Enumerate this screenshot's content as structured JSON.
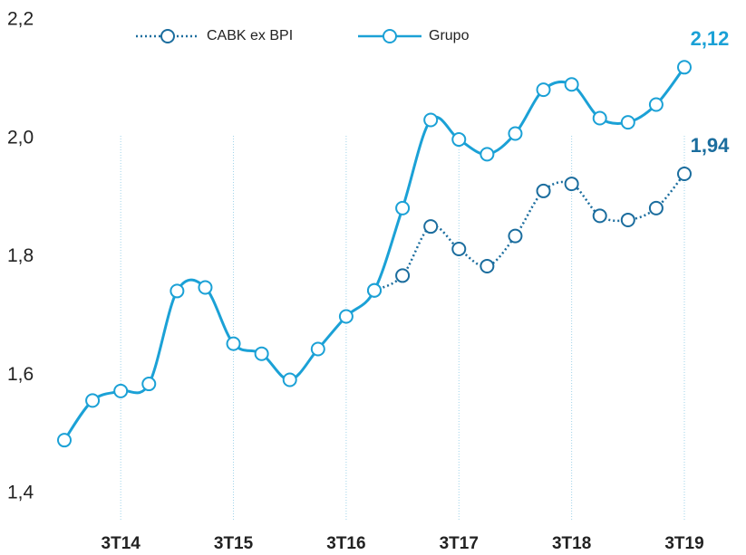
{
  "chart_data": {
    "type": "line",
    "categories": [
      null,
      null,
      "3T14",
      null,
      null,
      null,
      "3T15",
      null,
      null,
      null,
      "3T16",
      null,
      null,
      null,
      "3T17",
      null,
      null,
      null,
      "3T18",
      null,
      null,
      null,
      "3T19"
    ],
    "series": [
      {
        "name": "CABK ex BPI",
        "color": "#1b6d9e",
        "dashed": true,
        "values": [
          null,
          null,
          null,
          null,
          null,
          null,
          null,
          null,
          null,
          null,
          null,
          1.743,
          1.768,
          1.851,
          1.813,
          1.784,
          1.835,
          1.911,
          1.923,
          1.869,
          1.862,
          1.882,
          1.94
        ],
        "value_labels": [
          null,
          null,
          null,
          null,
          null,
          null,
          null,
          null,
          null,
          null,
          null,
          null,
          null,
          null,
          null,
          null,
          null,
          null,
          null,
          null,
          null,
          null,
          "1,94"
        ]
      },
      {
        "name": "Grupo",
        "color": "#1ba1d6",
        "dashed": false,
        "values": [
          1.49,
          1.557,
          1.573,
          1.585,
          1.742,
          1.748,
          1.653,
          1.636,
          1.592,
          1.644,
          1.699,
          1.743,
          1.882,
          2.031,
          1.998,
          1.973,
          2.008,
          2.082,
          2.091,
          2.034,
          2.027,
          2.057,
          2.12
        ],
        "value_labels": [
          null,
          null,
          null,
          null,
          null,
          null,
          null,
          null,
          null,
          null,
          null,
          null,
          null,
          null,
          null,
          null,
          null,
          null,
          null,
          null,
          null,
          null,
          "2,12"
        ]
      }
    ],
    "ylim": [
      1.4,
      2.2
    ],
    "yticks": [
      {
        "value": 1.4,
        "label": "1,4"
      },
      {
        "value": 1.6,
        "label": "1,6"
      },
      {
        "value": 1.8,
        "label": "1,8"
      },
      {
        "value": 2.0,
        "label": "2,0"
      },
      {
        "value": 2.2,
        "label": "2,2"
      }
    ],
    "legend": "top"
  }
}
